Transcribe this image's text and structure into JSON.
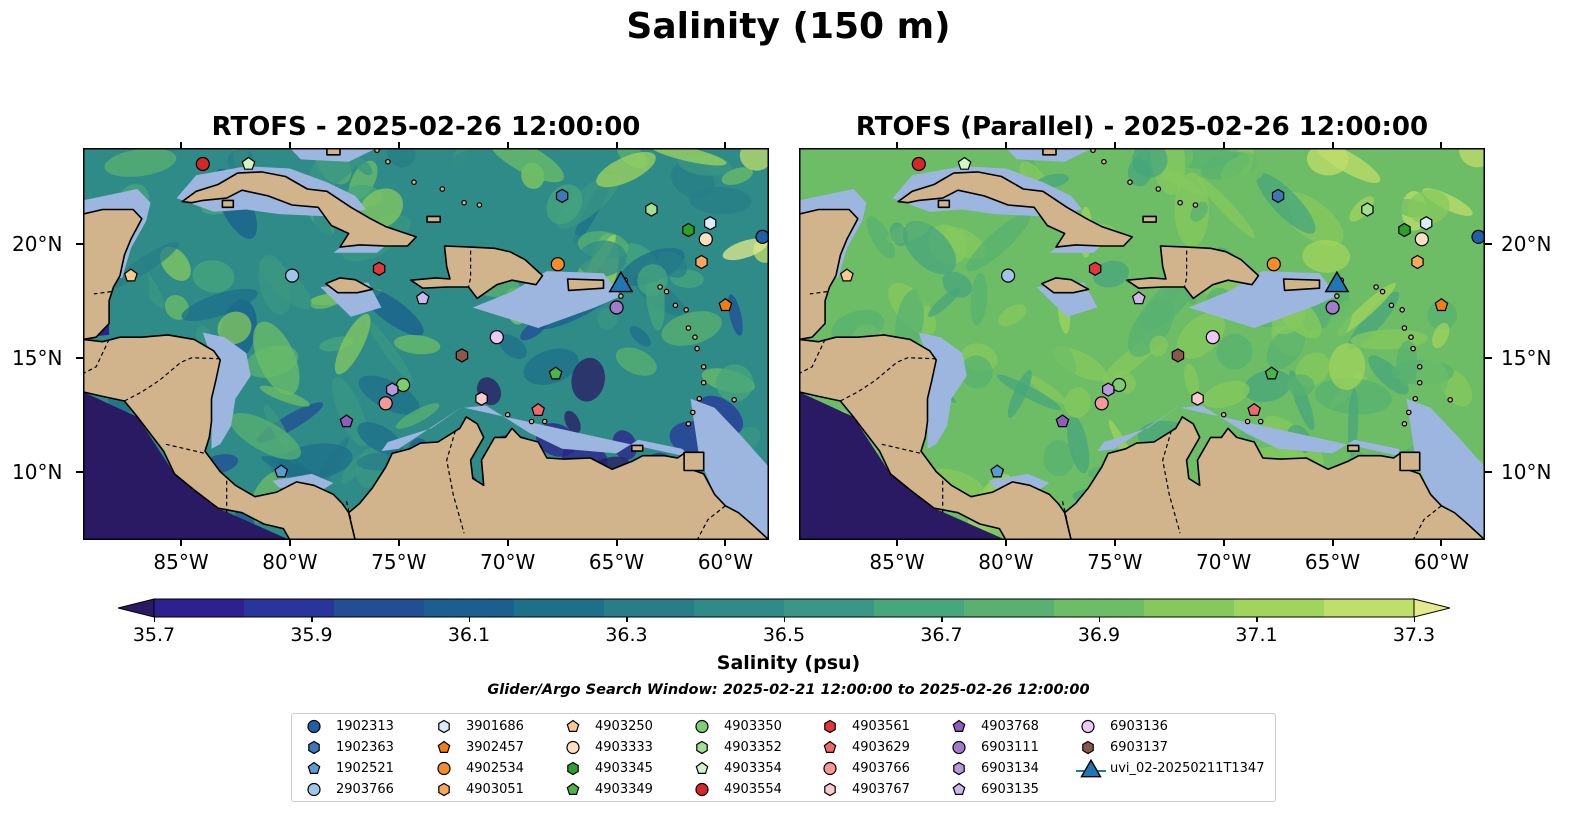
{
  "title": "Salinity (150 m)",
  "panels": [
    {
      "title": "RTOFS - 2025-02-26 12:00:00",
      "variant": "rtofs"
    },
    {
      "title": "RTOFS (Parallel) - 2025-02-26 12:00:00",
      "variant": "parallel"
    }
  ],
  "map": {
    "lon_range": [
      -89.5,
      -58.0
    ],
    "lat_range": [
      7.0,
      24.2
    ],
    "x_ticks": [
      "85°W",
      "80°W",
      "75°W",
      "70°W",
      "65°W",
      "60°W"
    ],
    "x_tick_values": [
      -85,
      -80,
      -75,
      -70,
      -65,
      -60
    ],
    "y_ticks": [
      "20°N",
      "15°N",
      "10°N"
    ],
    "y_tick_values": [
      20,
      15,
      10
    ],
    "colors": {
      "land": "#d2b48c",
      "shelf": "#9cb6e0",
      "coast": "#000000"
    }
  },
  "colorbar": {
    "label": "Salinity (psu)",
    "min": 35.6,
    "max": 37.4,
    "step": 0.1,
    "ticks": [
      "35.7",
      "35.9",
      "36.1",
      "36.3",
      "36.5",
      "36.7",
      "36.9",
      "37.1",
      "37.3"
    ],
    "tick_values": [
      35.7,
      35.9,
      36.1,
      36.3,
      36.5,
      36.7,
      36.9,
      37.1,
      37.3
    ],
    "colors": [
      "#2a1a63",
      "#2f208f",
      "#29359a",
      "#214e94",
      "#1a5f8e",
      "#1e6f8a",
      "#287d88",
      "#2f8b87",
      "#399783",
      "#47a67c",
      "#58b170",
      "#6cbd65",
      "#85c95d",
      "#a0d45c",
      "#c0de6a",
      "#e4eb8d"
    ]
  },
  "search_window": "Glider/Argo Search Window: 2025-02-21 12:00:00 to 2025-02-26 12:00:00",
  "legend": [
    {
      "label": "1902313",
      "shape": "circle",
      "color": "#1f5fa8"
    },
    {
      "label": "1902363",
      "shape": "hexagon",
      "color": "#3a78b8"
    },
    {
      "label": "1902521",
      "shape": "pentagon",
      "color": "#5b9bd5"
    },
    {
      "label": "2903766",
      "shape": "circle",
      "color": "#9dc6e8"
    },
    {
      "label": "3901686",
      "shape": "hexagon",
      "color": "#d9ecf9"
    },
    {
      "label": "3902457",
      "shape": "pentagon",
      "color": "#f47d12"
    },
    {
      "label": "4902534",
      "shape": "circle",
      "color": "#f98c2a"
    },
    {
      "label": "4903051",
      "shape": "hexagon",
      "color": "#fba85a"
    },
    {
      "label": "4903250",
      "shape": "pentagon",
      "color": "#fdc98c"
    },
    {
      "label": "4903333",
      "shape": "circle",
      "color": "#fde0c2"
    },
    {
      "label": "4903345",
      "shape": "hexagon",
      "color": "#2ca02c"
    },
    {
      "label": "4903349",
      "shape": "pentagon",
      "color": "#4ab44a"
    },
    {
      "label": "4903350",
      "shape": "circle",
      "color": "#7ccf6e"
    },
    {
      "label": "4903352",
      "shape": "hexagon",
      "color": "#a4df90"
    },
    {
      "label": "4903354",
      "shape": "pentagon",
      "color": "#d3f4c6"
    },
    {
      "label": "4903554",
      "shape": "circle",
      "color": "#d62728"
    },
    {
      "label": "4903561",
      "shape": "hexagon",
      "color": "#e0373a"
    },
    {
      "label": "4903629",
      "shape": "pentagon",
      "color": "#ee6a6a"
    },
    {
      "label": "4903766",
      "shape": "circle",
      "color": "#f79898"
    },
    {
      "label": "4903767",
      "shape": "hexagon",
      "color": "#fbcaca"
    },
    {
      "label": "4903768",
      "shape": "pentagon",
      "color": "#8e5dbb"
    },
    {
      "label": "6903111",
      "shape": "circle",
      "color": "#a07ccd"
    },
    {
      "label": "6903134",
      "shape": "hexagon",
      "color": "#b69adc"
    },
    {
      "label": "6903135",
      "shape": "pentagon",
      "color": "#cdb8ec"
    },
    {
      "label": "6903136",
      "shape": "circle",
      "color": "#ecc9f5"
    },
    {
      "label": "6903137",
      "shape": "hexagon",
      "color": "#8c564b"
    },
    {
      "label": "uvi_02-20250211T1347",
      "shape": "triangle",
      "color": "#1f77b4"
    }
  ],
  "floats": [
    {
      "id": "1902313",
      "lon": -58.3,
      "lat": 20.3
    },
    {
      "id": "1902363",
      "lon": -67.5,
      "lat": 22.1
    },
    {
      "id": "1902521",
      "lon": -80.4,
      "lat": 10.0
    },
    {
      "id": "2903766",
      "lon": -79.9,
      "lat": 18.6
    },
    {
      "id": "3901686",
      "lon": -60.7,
      "lat": 20.9
    },
    {
      "id": "3902457",
      "lon": -60.0,
      "lat": 17.3
    },
    {
      "id": "4902534",
      "lon": -67.7,
      "lat": 19.1
    },
    {
      "id": "4903051",
      "lon": -61.1,
      "lat": 19.2
    },
    {
      "id": "4903250",
      "lon": -87.3,
      "lat": 18.6
    },
    {
      "id": "4903333",
      "lon": -60.9,
      "lat": 20.2
    },
    {
      "id": "4903345",
      "lon": -61.7,
      "lat": 20.6
    },
    {
      "id": "4903349",
      "lon": -67.8,
      "lat": 14.3
    },
    {
      "id": "4903350",
      "lon": -74.8,
      "lat": 13.8
    },
    {
      "id": "4903352",
      "lon": -63.4,
      "lat": 21.5
    },
    {
      "id": "4903354",
      "lon": -81.9,
      "lat": 23.5
    },
    {
      "id": "4903554",
      "lon": -84.0,
      "lat": 23.5
    },
    {
      "id": "4903561",
      "lon": -75.9,
      "lat": 18.9
    },
    {
      "id": "4903629",
      "lon": -68.6,
      "lat": 12.7
    },
    {
      "id": "4903766",
      "lon": -75.6,
      "lat": 13.0
    },
    {
      "id": "4903767",
      "lon": -71.2,
      "lat": 13.2
    },
    {
      "id": "4903768",
      "lon": -77.4,
      "lat": 12.2
    },
    {
      "id": "6903111",
      "lon": -65.0,
      "lat": 17.2
    },
    {
      "id": "6903134",
      "lon": -75.3,
      "lat": 13.6
    },
    {
      "id": "6903135",
      "lon": -73.9,
      "lat": 17.6
    },
    {
      "id": "6903136",
      "lon": -70.5,
      "lat": 15.9
    },
    {
      "id": "6903137",
      "lon": -72.1,
      "lat": 15.1
    },
    {
      "id": "uvi_02-20250211T1347",
      "lon": -64.8,
      "lat": 18.3
    }
  ]
}
